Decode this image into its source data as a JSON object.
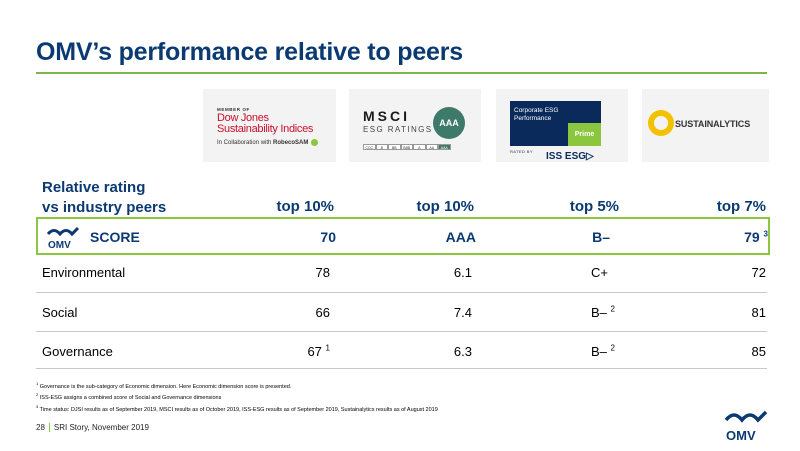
{
  "title": "OMV’s performance relative to peers",
  "logos": {
    "djsi": {
      "member_of": "MEMBER OF",
      "line1": "Dow Jones",
      "line2": "Sustainability Indices",
      "collab_prefix": "In Collaboration with",
      "collab_brand": "RobecoSAM"
    },
    "msci": {
      "word": "MSCI",
      "sub": "ESG RATINGS",
      "badge": "AAA",
      "scale": [
        "CCC",
        "B",
        "BB",
        "BBB",
        "A",
        "AA",
        "AAA"
      ],
      "selected": "AAA"
    },
    "iss": {
      "line1": "Corporate ESG",
      "line2": "Performance",
      "prime": "Prime",
      "rated_by": "RATED BY",
      "brand": "ISS ESG▷"
    },
    "sustainalytics": {
      "word": "SUSTAINALYTICS"
    }
  },
  "table": {
    "header_label_line1": "Relative rating",
    "header_label_line2": "vs industry peers",
    "header_values": [
      "top 10%",
      "top 10%",
      "top 5%",
      "top 7%"
    ],
    "score": {
      "label": "SCORE",
      "logo_text": "OMV",
      "values": [
        "70",
        "AAA",
        "B–",
        "79"
      ],
      "sup_last": "3"
    },
    "rows": [
      {
        "label": "Environmental",
        "c1": "78",
        "c1_sup": "",
        "c2": "6.1",
        "c3": "C+",
        "c3_sup": "",
        "c4": "72"
      },
      {
        "label": "Social",
        "c1": "66",
        "c1_sup": "",
        "c2": "7.4",
        "c3": "B–",
        "c3_sup": "2",
        "c4": "81"
      },
      {
        "label": "Governance",
        "c1": "67",
        "c1_sup": "1",
        "c2": "6.3",
        "c3": "B–",
        "c3_sup": "2",
        "c4": "85"
      }
    ]
  },
  "footnotes": [
    {
      "n": "1",
      "text": "Governance is the sub-category of Economic dimension. Here Economic dimension score is presented."
    },
    {
      "n": "2",
      "text": "ISS-ESG assigns a combined score of Social and Governance dimensions"
    },
    {
      "n": "3",
      "text": "Time status: DJSI results as of September 2019, MSCI results as of October 2019, ISS-ESG results as of September 2019, Sustainalytics results as of August 2019"
    }
  ],
  "footer": {
    "page": "28",
    "text": "SRI Story, November 2019"
  },
  "brand_logo_text": "OMV",
  "colors": {
    "navy": "#0b3a73",
    "green": "#8cc63f"
  }
}
